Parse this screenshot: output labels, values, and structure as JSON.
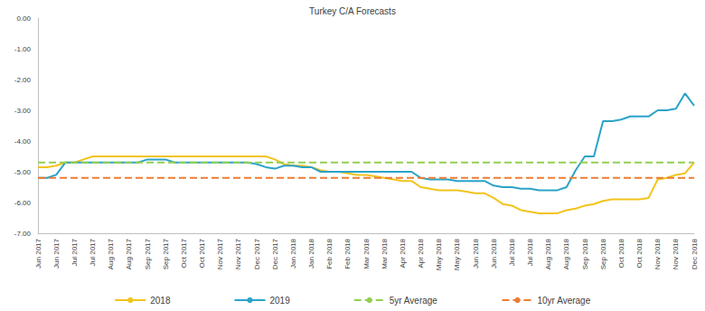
{
  "chart_data": {
    "type": "line",
    "title": "Turkey C/A Forecasts",
    "categories": [
      "Jun 2017",
      null,
      "Jun 2017",
      null,
      "Jul 2017",
      null,
      "Jul 2017",
      null,
      "Aug 2017",
      null,
      "Aug 2017",
      null,
      "Sep 2017",
      null,
      "Sep 2017",
      null,
      "Oct 2017",
      null,
      "Oct 2017",
      null,
      "Nov 2017",
      null,
      "Nov 2017",
      null,
      "Dec 2017",
      null,
      "Dec 2017",
      null,
      "Jan 2018",
      null,
      "Jan 2018",
      null,
      "Feb 2018",
      null,
      "Feb 2018",
      null,
      "Mar 2018",
      null,
      "Mar 2018",
      null,
      "Apr 2018",
      null,
      "Apr 2018",
      null,
      "May 2018",
      null,
      "May 2018",
      null,
      "Jun 2018",
      null,
      "Jun 2018",
      null,
      "Jul 2018",
      null,
      "Jul 2018",
      null,
      "Aug 2018",
      null,
      "Aug 2018",
      null,
      "Sep 2018",
      null,
      "Sep 2018",
      null,
      "Oct 2018",
      null,
      "Oct 2018",
      null,
      "Nov 2018",
      null,
      "Nov 2018",
      null,
      "Dec 2018"
    ],
    "series": [
      {
        "name": "2018",
        "color": "#f2c41c",
        "line_style": "solid",
        "values": [
          -4.85,
          -4.85,
          -4.8,
          -4.7,
          -4.7,
          -4.6,
          -4.5,
          -4.5,
          -4.5,
          -4.5,
          -4.5,
          -4.5,
          -4.5,
          -4.5,
          -4.5,
          -4.5,
          -4.5,
          -4.5,
          -4.5,
          -4.5,
          -4.5,
          -4.5,
          -4.5,
          -4.5,
          -4.5,
          -4.5,
          -4.6,
          -4.75,
          -4.8,
          -4.8,
          -4.85,
          -4.95,
          -5.0,
          -5.0,
          -5.05,
          -5.1,
          -5.1,
          -5.15,
          -5.2,
          -5.25,
          -5.3,
          -5.3,
          -5.5,
          -5.55,
          -5.6,
          -5.6,
          -5.6,
          -5.65,
          -5.7,
          -5.7,
          -5.85,
          -6.05,
          -6.1,
          -6.25,
          -6.3,
          -6.35,
          -6.35,
          -6.35,
          -6.25,
          -6.2,
          -6.1,
          -6.05,
          -5.95,
          -5.9,
          -5.9,
          -5.9,
          -5.9,
          -5.85,
          -5.25,
          -5.2,
          -5.1,
          -5.05,
          -4.7
        ]
      },
      {
        "name": "2019",
        "color": "#2ba3c8",
        "line_style": "solid",
        "values": [
          -5.2,
          -5.2,
          -5.1,
          -4.7,
          -4.7,
          -4.7,
          -4.7,
          -4.7,
          -4.7,
          -4.7,
          -4.7,
          -4.7,
          -4.6,
          -4.6,
          -4.6,
          -4.7,
          -4.7,
          -4.7,
          -4.7,
          -4.7,
          -4.7,
          -4.7,
          -4.7,
          -4.7,
          -4.75,
          -4.85,
          -4.9,
          -4.8,
          -4.8,
          -4.85,
          -4.85,
          -5.0,
          -5.0,
          -5.0,
          -5.0,
          -5.0,
          -5.0,
          -5.0,
          -5.0,
          -5.0,
          -5.0,
          -5.0,
          -5.2,
          -5.25,
          -5.25,
          -5.25,
          -5.3,
          -5.3,
          -5.3,
          -5.3,
          -5.45,
          -5.5,
          -5.5,
          -5.55,
          -5.55,
          -5.6,
          -5.6,
          -5.6,
          -5.5,
          -4.95,
          -4.5,
          -4.5,
          -3.35,
          -3.35,
          -3.3,
          -3.2,
          -3.2,
          -3.2,
          -3.0,
          -3.0,
          -2.95,
          -2.45,
          -2.85
        ]
      },
      {
        "name": "5yr Average",
        "color": "#92d050",
        "line_style": "dashed",
        "values": [
          -4.7,
          -4.7,
          -4.7,
          -4.7,
          -4.7,
          -4.7,
          -4.7,
          -4.7,
          -4.7,
          -4.7,
          -4.7,
          -4.7,
          -4.7,
          -4.7,
          -4.7,
          -4.7,
          -4.7,
          -4.7,
          -4.7,
          -4.7,
          -4.7,
          -4.7,
          -4.7,
          -4.7,
          -4.7,
          -4.7,
          -4.7,
          -4.7,
          -4.7,
          -4.7,
          -4.7,
          -4.7,
          -4.7,
          -4.7,
          -4.7,
          -4.7,
          -4.7,
          -4.7,
          -4.7,
          -4.7,
          -4.7,
          -4.7,
          -4.7,
          -4.7,
          -4.7,
          -4.7,
          -4.7,
          -4.7,
          -4.7,
          -4.7,
          -4.7,
          -4.7,
          -4.7,
          -4.7,
          -4.7,
          -4.7,
          -4.7,
          -4.7,
          -4.7,
          -4.7,
          -4.7,
          -4.7,
          -4.7,
          -4.7,
          -4.7,
          -4.7,
          -4.7,
          -4.7,
          -4.7,
          -4.7,
          -4.7,
          -4.7,
          -4.7
        ]
      },
      {
        "name": "10yr Average",
        "color": "#ed7d31",
        "line_style": "dashed",
        "values": [
          -5.2,
          -5.2,
          -5.2,
          -5.2,
          -5.2,
          -5.2,
          -5.2,
          -5.2,
          -5.2,
          -5.2,
          -5.2,
          -5.2,
          -5.2,
          -5.2,
          -5.2,
          -5.2,
          -5.2,
          -5.2,
          -5.2,
          -5.2,
          -5.2,
          -5.2,
          -5.2,
          -5.2,
          -5.2,
          -5.2,
          -5.2,
          -5.2,
          -5.2,
          -5.2,
          -5.2,
          -5.2,
          -5.2,
          -5.2,
          -5.2,
          -5.2,
          -5.2,
          -5.2,
          -5.2,
          -5.2,
          -5.2,
          -5.2,
          -5.2,
          -5.2,
          -5.2,
          -5.2,
          -5.2,
          -5.2,
          -5.2,
          -5.2,
          -5.2,
          -5.2,
          -5.2,
          -5.2,
          -5.2,
          -5.2,
          -5.2,
          -5.2,
          -5.2,
          -5.2,
          -5.2,
          -5.2,
          -5.2,
          -5.2,
          -5.2,
          -5.2,
          -5.2,
          -5.2,
          -5.2,
          -5.2,
          -5.2,
          -5.2,
          -5.2
        ]
      }
    ],
    "ylim": [
      -7,
      0
    ],
    "yticks": [
      {
        "value": -7,
        "label": "-7.00"
      },
      {
        "value": -6,
        "label": "-6.00"
      },
      {
        "value": -5,
        "label": "-5.00"
      },
      {
        "value": -4,
        "label": "-4.00"
      },
      {
        "value": -3,
        "label": "-3.00"
      },
      {
        "value": -2,
        "label": "-2.00"
      },
      {
        "value": -1,
        "label": "-1.00"
      },
      {
        "value": 0,
        "label": "0.00"
      }
    ],
    "grid": false,
    "legend": "bottom",
    "marker": "none"
  }
}
